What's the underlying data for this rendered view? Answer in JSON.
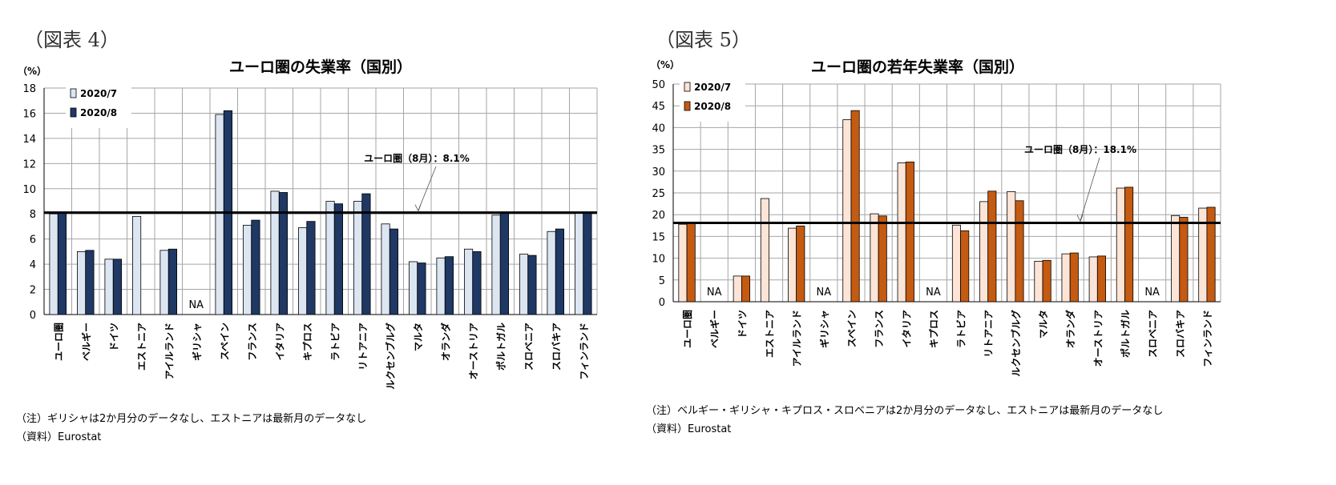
{
  "charts": [
    {
      "label": "（図表 4）",
      "note": "（注）ギリシャは2か月分のデータなし、エストニアは最新月のデータなし",
      "source": "（資料）Eurostat",
      "colors": [
        "#dce6f2",
        "#1f3864"
      ],
      "chart_data": {
        "type": "bar",
        "title": "ユーロ圏の失業率（国別）",
        "unit": "（%）",
        "categories": [
          "ユーロ圏",
          "ベルギー",
          "ドイツ",
          "エストニア",
          "アイルランド",
          "ギリシャ",
          "スペイン",
          "フランス",
          "イタリア",
          "キプロス",
          "ラトビア",
          "リトアニア",
          "ルクセンブルグ",
          "マルタ",
          "オランダ",
          "オーストリア",
          "ポルトガル",
          "スロベニア",
          "スロバキア",
          "フィンランド"
        ],
        "series": [
          {
            "name": "2020/7",
            "values": [
              8.0,
              5.0,
              4.4,
              7.8,
              5.1,
              null,
              15.9,
              7.1,
              9.8,
              6.9,
              9.0,
              9.0,
              7.2,
              4.2,
              4.5,
              5.2,
              7.9,
              4.8,
              6.6,
              8.1
            ]
          },
          {
            "name": "2020/8",
            "values": [
              8.1,
              5.1,
              4.4,
              null,
              5.2,
              null,
              16.2,
              7.5,
              9.7,
              7.4,
              8.8,
              9.6,
              6.8,
              4.1,
              4.6,
              5.0,
              8.1,
              4.7,
              6.8,
              8.1
            ]
          }
        ],
        "ylim": [
          0,
          18
        ],
        "yticks": [
          0,
          2,
          4,
          6,
          8,
          10,
          12,
          14,
          16,
          18
        ],
        "reference_line": 8.1,
        "annotation": "ユーロ圏（8月）：8.1%",
        "na_label": "NA",
        "grid": true,
        "legend_position": "top-left"
      }
    },
    {
      "label": "（図表 5）",
      "note": "（注）ベルギー・ギリシャ・キプロス・スロベニアは2か月分のデータなし、エストニアは最新月のデータなし",
      "source": "（資料）Eurostat",
      "colors": [
        "#fce4d6",
        "#c55a11"
      ],
      "chart_data": {
        "type": "bar",
        "title": "ユーロ圏の若年失業率（国別）",
        "unit": "（%）",
        "categories": [
          "ユーロ圏",
          "ベルギー",
          "ドイツ",
          "エストニア",
          "アイルランド",
          "ギリシャ",
          "スペイン",
          "フランス",
          "イタリア",
          "キプロス",
          "ラトビア",
          "リトアニア",
          "ルクセンブルグ",
          "マルタ",
          "オランダ",
          "オーストリア",
          "ポルトガル",
          "スロベニア",
          "スロバキア",
          "フィンランド"
        ],
        "series": [
          {
            "name": "2020/7",
            "values": [
              17.8,
              null,
              5.9,
              23.7,
              16.9,
              null,
              41.8,
              20.2,
              31.9,
              null,
              17.6,
              23.0,
              25.3,
              9.3,
              11.0,
              10.3,
              26.1,
              null,
              19.8,
              21.5
            ]
          },
          {
            "name": "2020/8",
            "values": [
              18.1,
              null,
              5.9,
              null,
              17.4,
              null,
              43.9,
              19.7,
              32.1,
              null,
              16.3,
              25.4,
              23.2,
              9.5,
              11.2,
              10.5,
              26.3,
              null,
              19.4,
              21.7
            ]
          }
        ],
        "ylim": [
          0,
          50
        ],
        "yticks": [
          0,
          5,
          10,
          15,
          20,
          25,
          30,
          35,
          40,
          45,
          50
        ],
        "reference_line": 18.1,
        "annotation": "ユーロ圏（8月）：18.1%",
        "na_label": "NA",
        "grid": true,
        "legend_position": "top-left"
      }
    }
  ]
}
